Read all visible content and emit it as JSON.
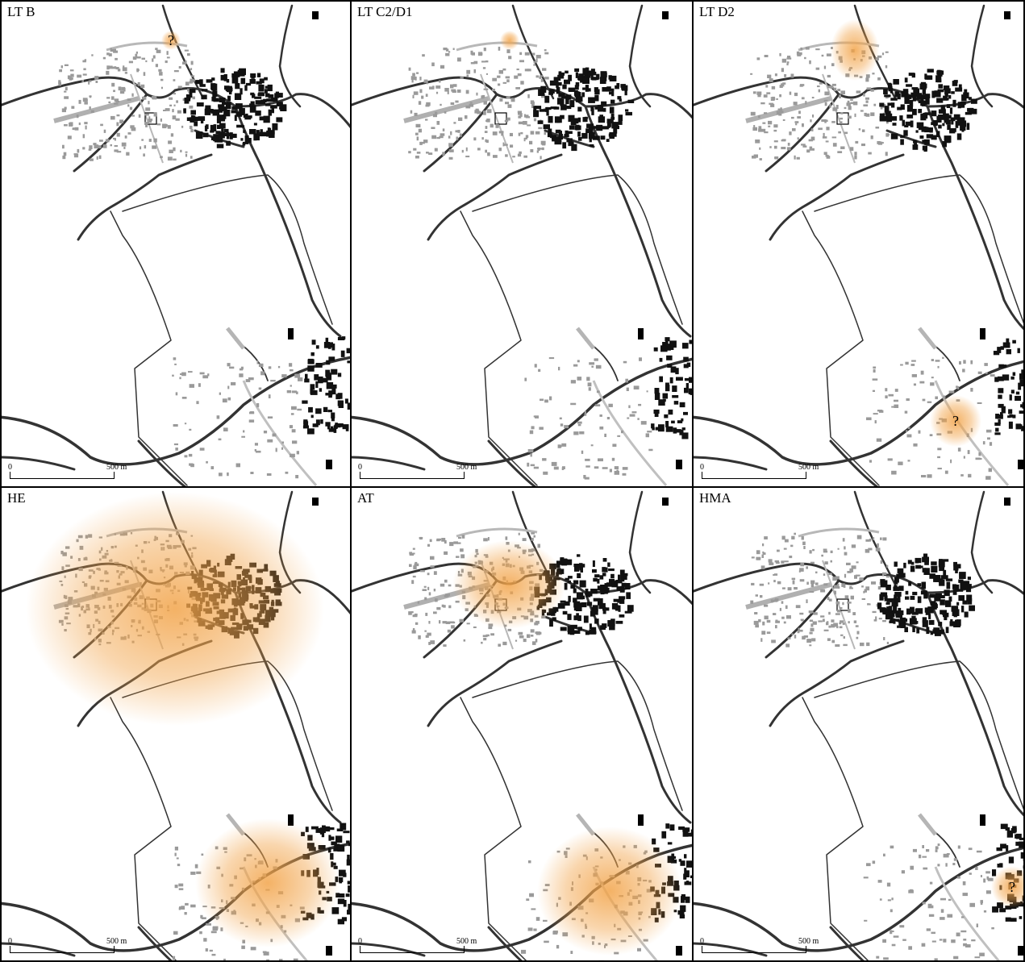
{
  "figure": {
    "panels": [
      {
        "id": "lt-b",
        "label": "LT B",
        "scale_zero": "0",
        "scale_max": "500 m"
      },
      {
        "id": "lt-c2-d1",
        "label": "LT C2/D1",
        "scale_zero": "0",
        "scale_max": "500 m"
      },
      {
        "id": "lt-d2",
        "label": "LT D2",
        "scale_zero": "0",
        "scale_max": "500 m"
      },
      {
        "id": "he",
        "label": "HE",
        "scale_zero": "0",
        "scale_max": "500 m"
      },
      {
        "id": "at",
        "label": "AT",
        "scale_zero": "0",
        "scale_max": "500 m"
      },
      {
        "id": "hma",
        "label": "HMA",
        "scale_zero": "0",
        "scale_max": "500 m"
      }
    ],
    "uncertain_marker": "?",
    "colors": {
      "settlement_glow": "#f2a44a",
      "historic_buildings": "#111111",
      "excavated_structures": "#9a9a9a",
      "roads": "#333333",
      "boundary": "#222222"
    }
  }
}
